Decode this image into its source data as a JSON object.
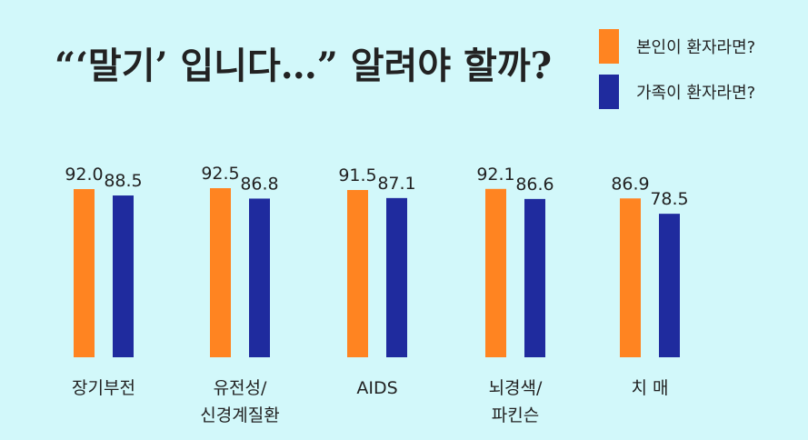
{
  "chart_data": {
    "type": "bar",
    "title": "“‘말기’ 입니다…” 알려야 할까?",
    "categories": [
      [
        "장기부전"
      ],
      [
        "유전성/",
        "신경계질환"
      ],
      [
        "AIDS"
      ],
      [
        "뇌경색/",
        "파킨슨"
      ],
      [
        "치  매"
      ]
    ],
    "series": [
      {
        "name": "본인이 환자라면?",
        "color": "#ff8421",
        "values": [
          92.0,
          92.5,
          91.5,
          92.1,
          86.9
        ]
      },
      {
        "name": "가족이 환자라면?",
        "color": "#1f2b9e",
        "values": [
          88.5,
          86.8,
          87.1,
          86.6,
          78.5
        ]
      }
    ],
    "ylim": [
      0,
      100
    ],
    "legend_position": "top-right",
    "grid": false
  }
}
